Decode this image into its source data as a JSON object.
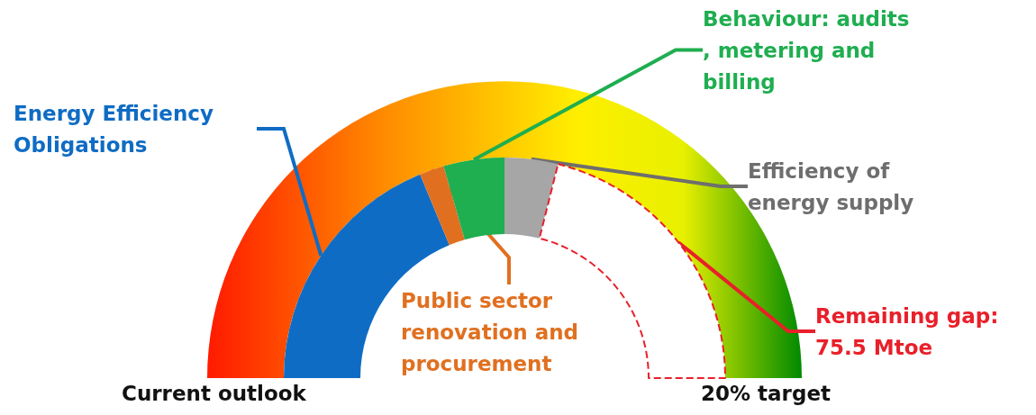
{
  "chart_data": {
    "type": "donut",
    "categories": [
      "Energy Efficiency Obligations",
      "Public sector renovation and procurement",
      "Behaviour: audits, metering and billing",
      "Efficiency of energy supply",
      "Remaining gap: 75.5 Mtoe"
    ],
    "values": [
      37.5,
      3.6,
      8.9,
      7.8,
      42.2
    ],
    "colors": [
      "#0f6cc4",
      "#e07020",
      "#1fae50",
      "#a6a6a6",
      "#ffffff"
    ],
    "annotations": [
      "Current outlook",
      "20% target"
    ]
  }
}
